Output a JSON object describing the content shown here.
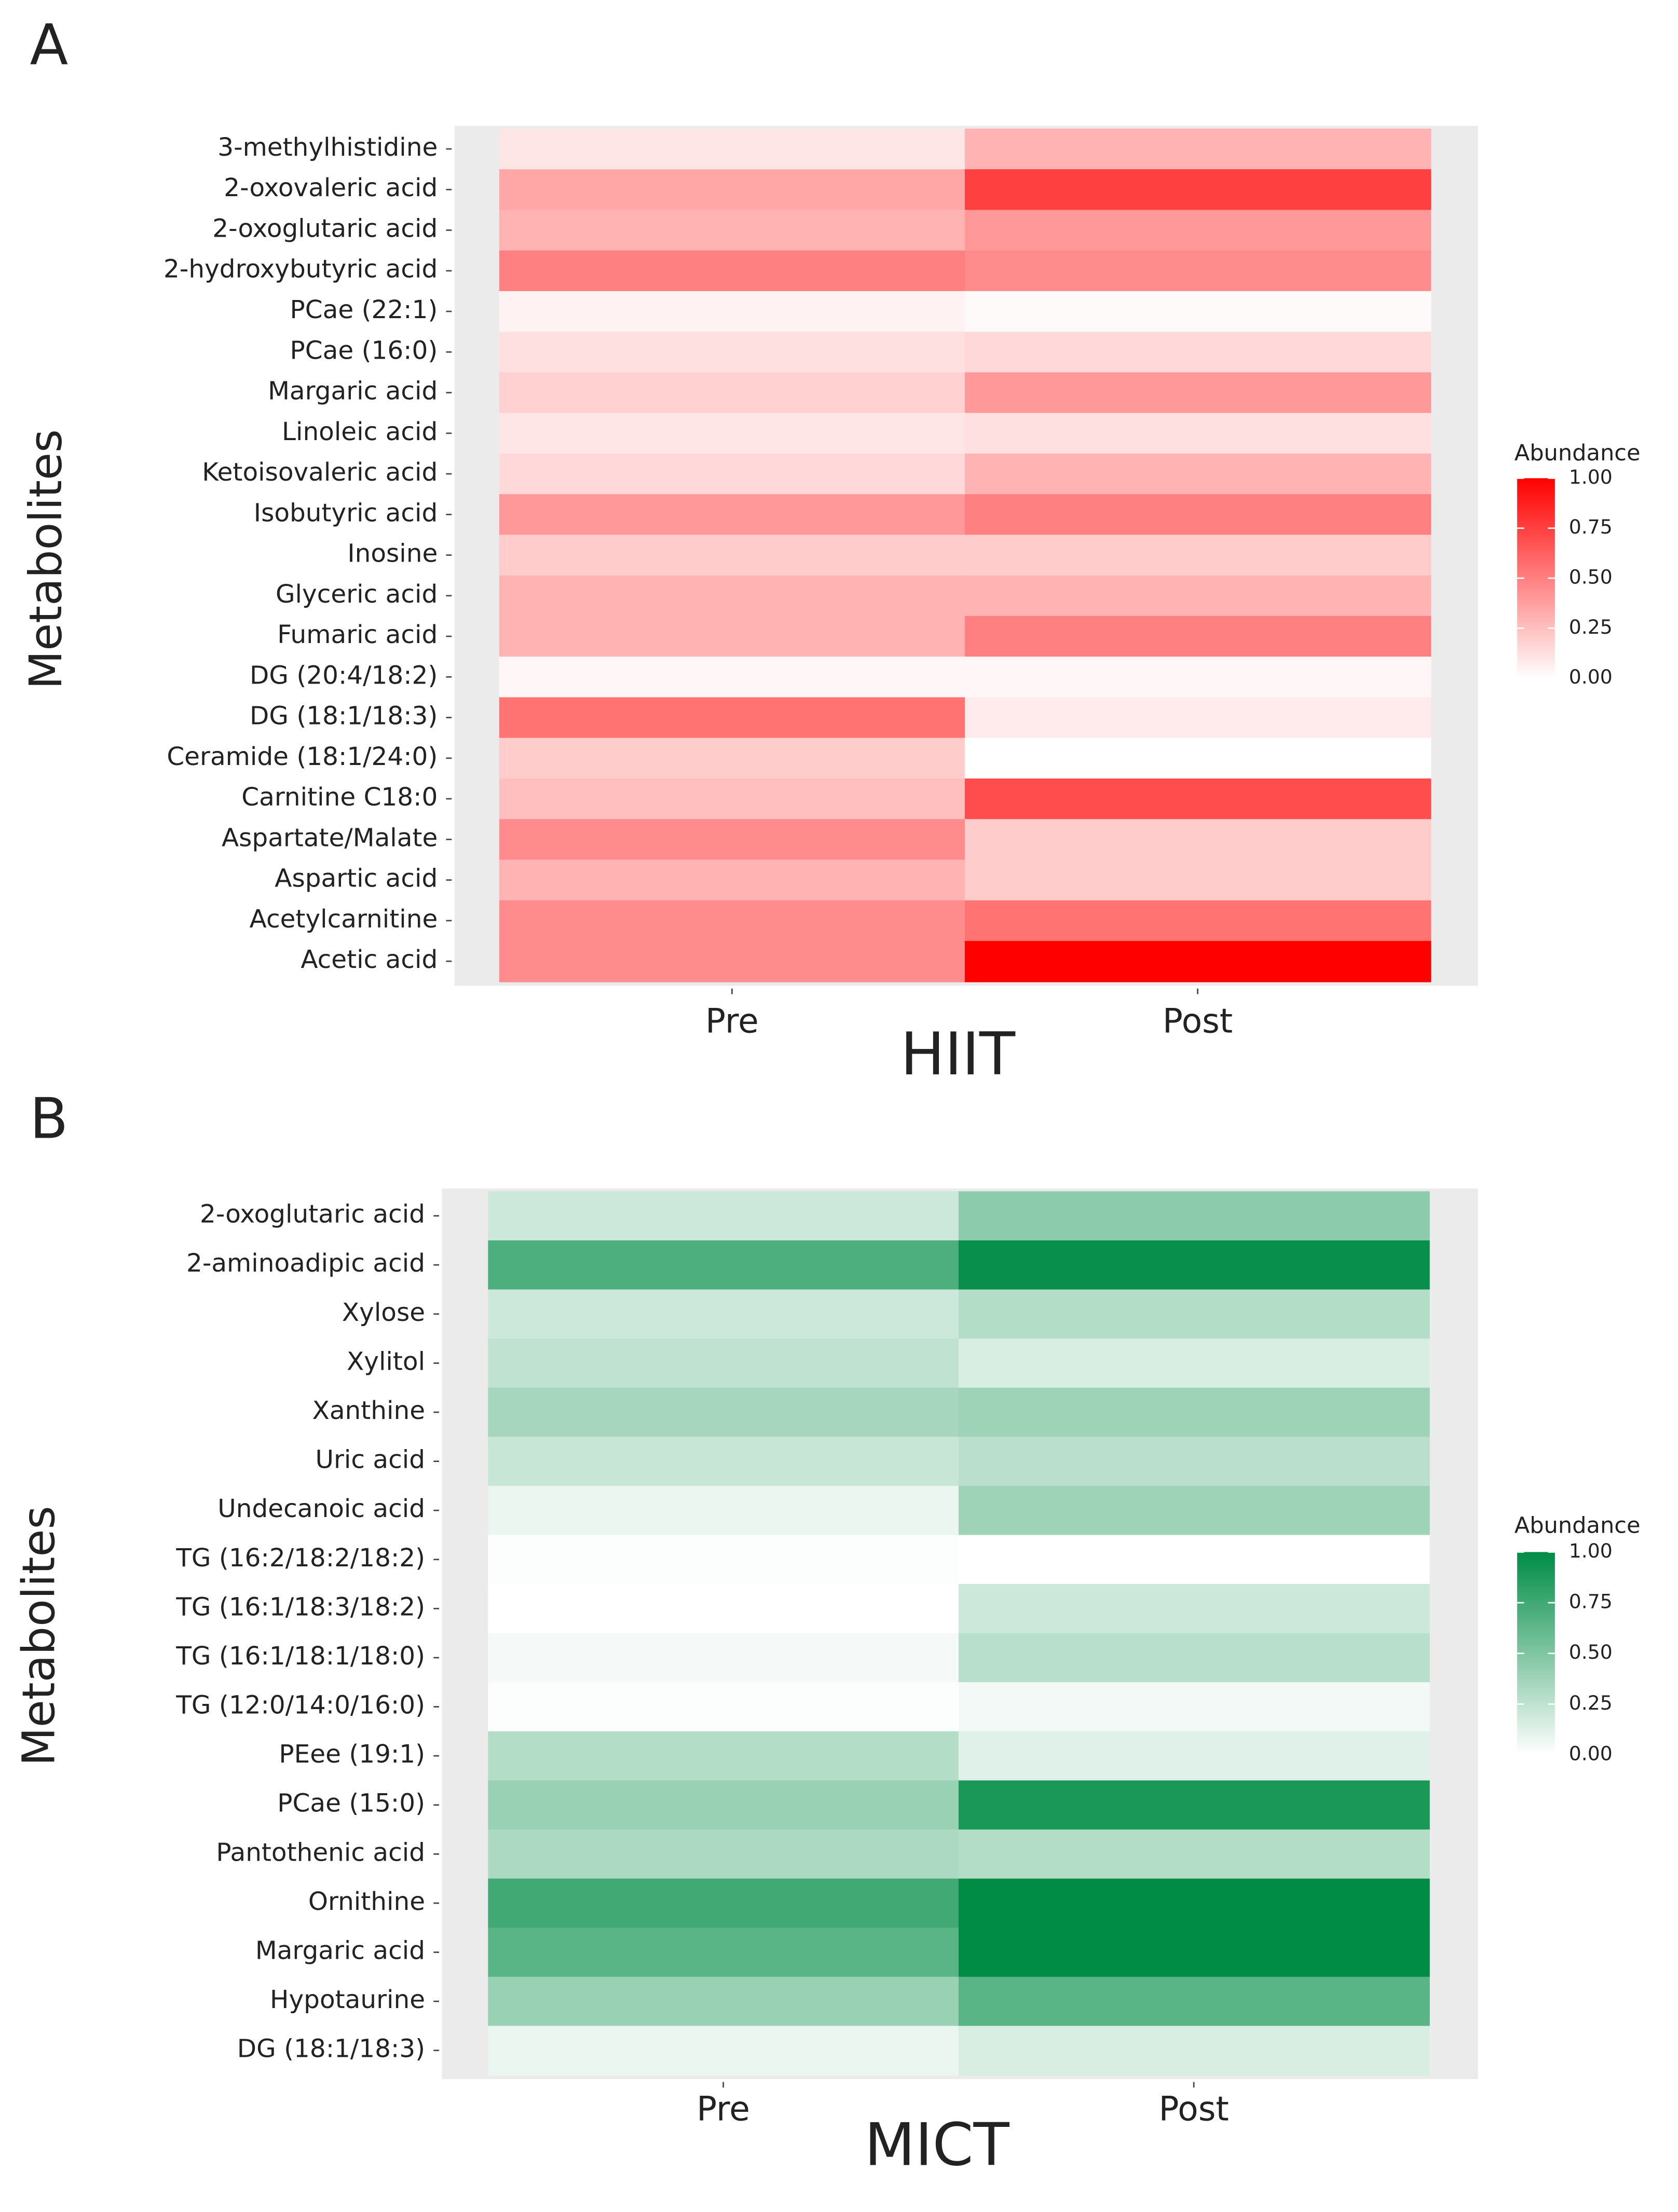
{
  "chart_data": [
    {
      "type": "heatmap",
      "panel_label": "A",
      "x_title": "HIIT",
      "y_title": "Metabolites",
      "legend_title": "Abundance",
      "low_color": "#ffffff",
      "high_color": "#ff0000",
      "categories": [
        "Pre",
        "Post"
      ],
      "rows": [
        "3-methylhistidine",
        "2-oxovaleric acid",
        "2-oxoglutaric acid",
        "2-hydroxybutyric acid",
        "PCae (22:1)",
        "PCae (16:0)",
        "Margaric acid",
        "Linoleic acid",
        "Ketoisovaleric acid",
        "Isobutyric acid",
        "Inosine",
        "Glyceric acid",
        "Fumaric acid",
        "DG (20:4/18:2)",
        "DG (18:1/18:3)",
        "Ceramide (18:1/24:0)",
        "Carnitine C18:0",
        "Aspartate/Malate",
        "Aspartic acid",
        "Acetylcarnitine",
        "Acetic acid"
      ],
      "values": [
        [
          0.1,
          0.3
        ],
        [
          0.35,
          0.75
        ],
        [
          0.3,
          0.4
        ],
        [
          0.5,
          0.45
        ],
        [
          0.05,
          0.02
        ],
        [
          0.12,
          0.15
        ],
        [
          0.18,
          0.4
        ],
        [
          0.1,
          0.12
        ],
        [
          0.15,
          0.3
        ],
        [
          0.4,
          0.5
        ],
        [
          0.2,
          0.2
        ],
        [
          0.3,
          0.3
        ],
        [
          0.3,
          0.5
        ],
        [
          0.03,
          0.03
        ],
        [
          0.55,
          0.08
        ],
        [
          0.2,
          0.0
        ],
        [
          0.25,
          0.7
        ],
        [
          0.45,
          0.2
        ],
        [
          0.3,
          0.2
        ],
        [
          0.45,
          0.55
        ],
        [
          0.45,
          1.0
        ]
      ],
      "clim": [
        0,
        1
      ],
      "cticks": [
        {
          "value": 0,
          "label": "0.00"
        },
        {
          "value": 0.25,
          "label": "0.25"
        },
        {
          "value": 0.5,
          "label": "0.50"
        },
        {
          "value": 0.75,
          "label": "0.75"
        },
        {
          "value": 1,
          "label": "1.00"
        }
      ]
    },
    {
      "type": "heatmap",
      "panel_label": "B",
      "x_title": "MICT",
      "y_title": "Metabolites",
      "legend_title": "Abundance",
      "low_color": "#ffffff",
      "high_color": "#008c45",
      "categories": [
        "Pre",
        "Post"
      ],
      "rows": [
        "2-oxoglutaric acid",
        "2-aminoadipic acid",
        "Xylose",
        "Xylitol",
        "Xanthine",
        "Uric acid",
        "Undecanoic acid",
        "TG (16:2/18:2/18:2)",
        "TG (16:1/18:3/18:2)",
        "TG (16:1/18:1/18:0)",
        "TG (12:0/14:0/16:0)",
        "PEee (19:1)",
        "PCae (15:0)",
        "Pantothenic acid",
        "Ornithine",
        "Margaric acid",
        "Hypotaurine",
        "DG (18:1/18:3)"
      ],
      "values": [
        [
          0.2,
          0.45
        ],
        [
          0.7,
          0.97
        ],
        [
          0.2,
          0.3
        ],
        [
          0.25,
          0.15
        ],
        [
          0.35,
          0.38
        ],
        [
          0.22,
          0.27
        ],
        [
          0.08,
          0.38
        ],
        [
          0.01,
          0.0
        ],
        [
          0.0,
          0.2
        ],
        [
          0.04,
          0.28
        ],
        [
          0.01,
          0.05
        ],
        [
          0.3,
          0.12
        ],
        [
          0.4,
          0.9
        ],
        [
          0.33,
          0.3
        ],
        [
          0.75,
          1.0
        ],
        [
          0.65,
          1.0
        ],
        [
          0.4,
          0.65
        ],
        [
          0.08,
          0.15
        ]
      ],
      "clim": [
        0,
        1
      ],
      "cticks": [
        {
          "value": 0,
          "label": "0.00"
        },
        {
          "value": 0.25,
          "label": "0.25"
        },
        {
          "value": 0.5,
          "label": "0.50"
        },
        {
          "value": 0.75,
          "label": "0.75"
        },
        {
          "value": 1,
          "label": "1.00"
        }
      ]
    }
  ]
}
